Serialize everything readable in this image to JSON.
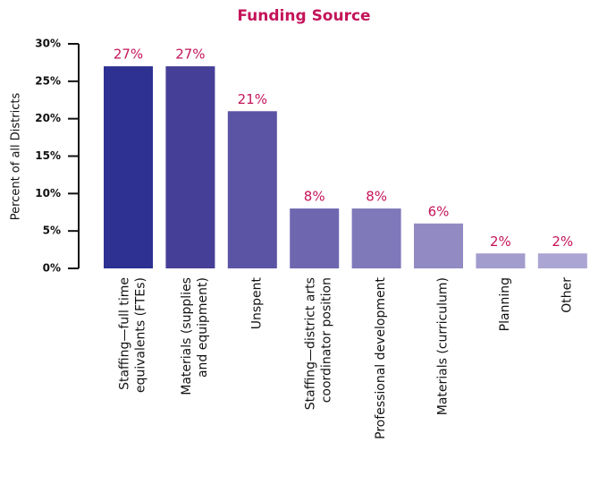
{
  "chart_data": {
    "type": "bar",
    "title": "Funding Source",
    "y_label": "Percent of all Districts",
    "categories": [
      [
        "Staffing—full time",
        "equivalents (FTEs)"
      ],
      [
        "Materials (supplies",
        "and equipment)"
      ],
      [
        "Unspent"
      ],
      [
        "Staffing—district arts",
        "coordinator position"
      ],
      [
        "Professional development"
      ],
      [
        "Materials (curriculum)"
      ],
      [
        "Planning"
      ],
      [
        "Other"
      ]
    ],
    "values": [
      27,
      27,
      21,
      8,
      8,
      6,
      2,
      2
    ],
    "value_labels": [
      "27%",
      "27%",
      "21%",
      "8%",
      "8%",
      "6%",
      "2%",
      "2%"
    ],
    "colors": [
      "#2e3192",
      "#463f98",
      "#5b54a4",
      "#6e67b0",
      "#7f78b9",
      "#918ac3",
      "#a29dcd",
      "#aaa5d2"
    ],
    "ylim": [
      0,
      30
    ],
    "yticks": [
      {
        "value": 0,
        "label": "0%"
      },
      {
        "value": 5,
        "label": "5%"
      },
      {
        "value": 10,
        "label": "10%"
      },
      {
        "value": 15,
        "label": "15%"
      },
      {
        "value": 20,
        "label": "20%"
      },
      {
        "value": 25,
        "label": "25%"
      },
      {
        "value": 30,
        "label": "30%"
      }
    ]
  }
}
